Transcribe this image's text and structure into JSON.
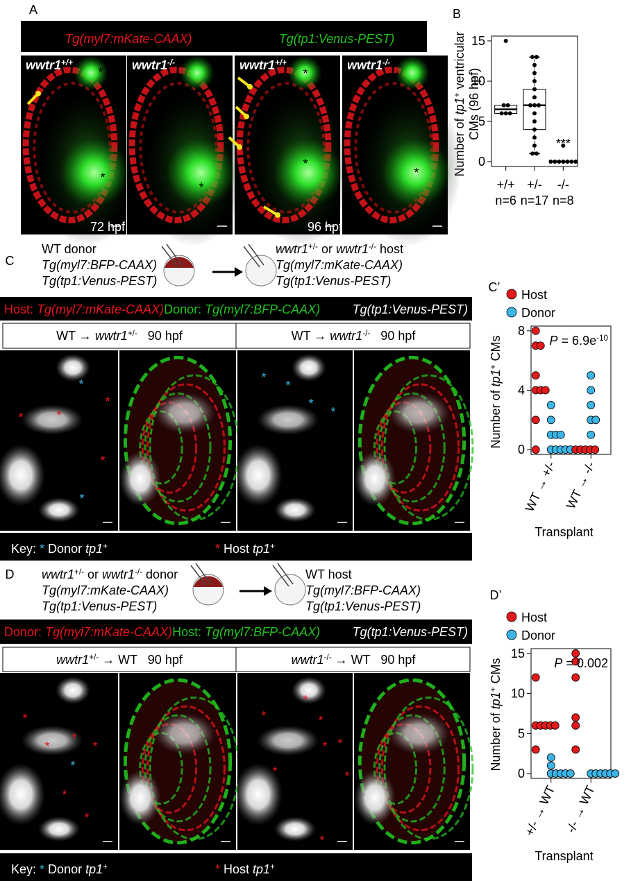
{
  "asterisk": "*",
  "panel_a": {
    "label": "A",
    "legend": [
      "Tg(myl7:mKate-CAAX)",
      "Tg(tp1:Venus-PEST)"
    ],
    "images": [
      {
        "gene": "wwtr1",
        "genotype": "+/+"
      },
      {
        "gene": "wwtr1",
        "genotype": "-/-"
      },
      {
        "gene": "wwtr1",
        "genotype": "+/+"
      },
      {
        "gene": "wwtr1",
        "genotype": "-/-"
      }
    ],
    "stages": [
      "72 hpf",
      "96 hpf"
    ]
  },
  "panel_b": {
    "type": "box",
    "label": "B",
    "ylabel": [
      "Number of ",
      "tp1",
      "+",
      " ventricular",
      "CMs (96 hpf)"
    ],
    "categories": [
      "+/+",
      "+/-",
      "-/-"
    ],
    "n_labels": [
      "n=6",
      "n=17",
      "n=8"
    ],
    "boxes": [
      {
        "whisker_low": 6,
        "q1": 6,
        "median": 6.5,
        "q3": 7,
        "whisker_high": 7
      },
      {
        "whisker_low": 1,
        "q1": 4,
        "median": 7,
        "q3": 9,
        "whisker_high": 13
      },
      {
        "whisker_low": 0,
        "q1": 0,
        "median": 0,
        "q3": 0,
        "whisker_high": 0
      }
    ],
    "points": [
      [
        15,
        7,
        7,
        6,
        6,
        6
      ],
      [
        13,
        13,
        12,
        11,
        10,
        9,
        8,
        7,
        7,
        7,
        6,
        5,
        4,
        3,
        2,
        1,
        1
      ],
      [
        2,
        0,
        0,
        0,
        0,
        0,
        0,
        0
      ]
    ],
    "annotation": "***",
    "color": "#000000",
    "ylim": [
      -0.6,
      15.6
    ],
    "yticks": [
      0,
      5,
      10,
      15
    ]
  },
  "panel_c": {
    "label": "C",
    "donor": [
      "WT donor",
      "Tg(myl7:BFP-CAAX)",
      "Tg(tp1:Venus-PEST)"
    ],
    "host": {
      "line1": [
        "wwtr1",
        "+/-",
        " or ",
        "wwtr1",
        "-/-",
        " host"
      ],
      "lines": [
        "Tg(myl7:mKate-CAAX)",
        "Tg(tp1:Venus-PEST)"
      ]
    },
    "legend": [
      "Host: ",
      "Tg(myl7:mKate-CAAX)",
      "Donor: ",
      "Tg(myl7:BFP-CAAX)",
      "Tg(tp1:Venus-PEST)"
    ],
    "headers": [
      [
        "WT → ",
        "wwtr1",
        "+/-",
        "   90 hpf"
      ],
      [
        "WT → ",
        "wwtr1",
        "-/-",
        "   90 hpf"
      ]
    ],
    "key": [
      "Key: ",
      "*",
      " Donor ",
      "tp1",
      "+",
      "*",
      " Host ",
      "tp1",
      "+"
    ]
  },
  "panel_c_prime": {
    "type": "strip",
    "label": "C’",
    "ylabel": [
      "Number of ",
      "tp1",
      "+",
      " CMs"
    ],
    "xlabel": "Transplant",
    "categories": [
      "WT → +/-",
      "WT → -/-"
    ],
    "p_value": [
      "P",
      " = 6.9e",
      "-10"
    ],
    "series": [
      {
        "name": "Host",
        "color": "#e31a1c",
        "values": [
          [
            8,
            7,
            7,
            5,
            4,
            4,
            4,
            2,
            0
          ],
          [
            0,
            0,
            0,
            0,
            0
          ]
        ]
      },
      {
        "name": "Donor",
        "color": "#3cb4e5",
        "values": [
          [
            3,
            2,
            1,
            1,
            1,
            0,
            0,
            0,
            0,
            0
          ],
          [
            5,
            4,
            3,
            2,
            2,
            1
          ]
        ]
      }
    ],
    "ylim": [
      -0.32,
      8.32
    ],
    "yticks": [
      0,
      4,
      8
    ]
  },
  "panel_d": {
    "label": "D",
    "donor": {
      "line1": [
        "wwtr1",
        "+/-",
        " or ",
        "wwtr1",
        "-/-",
        " donor"
      ],
      "lines": [
        "Tg(myl7:mKate-CAAX)",
        "Tg(tp1:Venus-PEST)"
      ]
    },
    "host": [
      "WT host",
      "Tg(myl7:BFP-CAAX)",
      "Tg(tp1:Venus-PEST)"
    ],
    "legend": [
      "Donor: ",
      "Tg(myl7:mKate-CAAX)",
      "Host: ",
      "Tg(myl7:BFP-CAAX)",
      "Tg(tp1:Venus-PEST)"
    ],
    "headers": [
      [
        "wwtr1",
        "+/-",
        " → WT",
        "   90 hpf"
      ],
      [
        "wwtr1",
        "-/-",
        " → WT",
        "   90 hpf"
      ]
    ],
    "key": [
      "Key: ",
      "*",
      " Donor ",
      "tp1",
      "+",
      "*",
      " Host ",
      "tp1",
      "+"
    ]
  },
  "panel_d_prime": {
    "type": "strip",
    "label": "D’",
    "ylabel": [
      "Number of ",
      "tp1",
      "+",
      " CMs"
    ],
    "xlabel": "Transplant",
    "categories": [
      "+/- → WT",
      "-/- → WT"
    ],
    "p_value": [
      "P",
      " = 0.002"
    ],
    "series": [
      {
        "name": "Host",
        "color": "#e31a1c",
        "values": [
          [
            12,
            6,
            6,
            6,
            6,
            6,
            3
          ],
          [
            15,
            14,
            12,
            7,
            6,
            3
          ]
        ]
      },
      {
        "name": "Donor",
        "color": "#3cb4e5",
        "values": [
          [
            2,
            1,
            0,
            0,
            0,
            0,
            0
          ],
          [
            0,
            0,
            0,
            0,
            0,
            0
          ]
        ]
      }
    ],
    "ylim": [
      -0.6,
      15.6
    ],
    "yticks": [
      0,
      5,
      10,
      15
    ]
  }
}
